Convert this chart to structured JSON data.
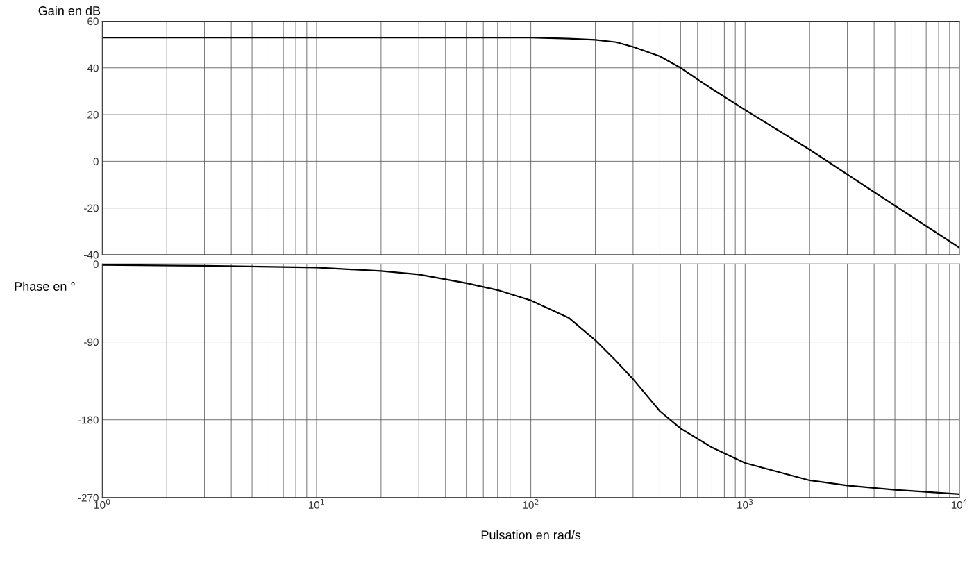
{
  "chart_data": [
    {
      "type": "line",
      "ylabel": "Gain en dB",
      "log": "x",
      "grid": true,
      "tick_labels": "y",
      "xlim": [
        1,
        10000
      ],
      "xticks": [
        1,
        10,
        100,
        1000,
        10000
      ],
      "ylim": [
        -40,
        60
      ],
      "yticks": [
        -40,
        -20,
        0,
        20,
        40,
        60
      ],
      "series": [
        {
          "color": "#000000",
          "x": [
            1,
            10,
            50,
            100,
            150,
            200,
            250,
            300,
            400,
            500,
            700,
            1000,
            2000,
            5000,
            10000
          ],
          "values": [
            53,
            53,
            53,
            53,
            52.5,
            52,
            51,
            49,
            45,
            40,
            31,
            22,
            5,
            -19,
            -37
          ]
        }
      ]
    },
    {
      "type": "line",
      "ylabel": "Phase en °",
      "xlabel": "Pulsation en rad/s",
      "log": "x",
      "grid": true,
      "xlim": [
        1,
        10000
      ],
      "xticks": [
        {
          "value": 1,
          "label": "10$^{0}$"
        },
        {
          "value": 10,
          "label": "10$^{1}$"
        },
        {
          "value": 100,
          "label": "10$^{2}$"
        },
        {
          "value": 1000,
          "label": "10$^{3}$"
        },
        {
          "value": 10000,
          "label": "10$^{4}$"
        }
      ],
      "ylim": [
        -270,
        0
      ],
      "yticks": [
        -270,
        -180,
        -90,
        0
      ],
      "series": [
        {
          "color": "#000000",
          "x": [
            1,
            3,
            10,
            20,
            30,
            50,
            70,
            100,
            150,
            200,
            250,
            300,
            400,
            500,
            700,
            1000,
            2000,
            3000,
            5000,
            10000
          ],
          "values": [
            -1,
            -2,
            -4,
            -8,
            -12,
            -22,
            -30,
            -42,
            -62,
            -88,
            -112,
            -133,
            -170,
            -190,
            -212,
            -230,
            -250,
            -256,
            -261,
            -266
          ]
        }
      ]
    }
  ]
}
